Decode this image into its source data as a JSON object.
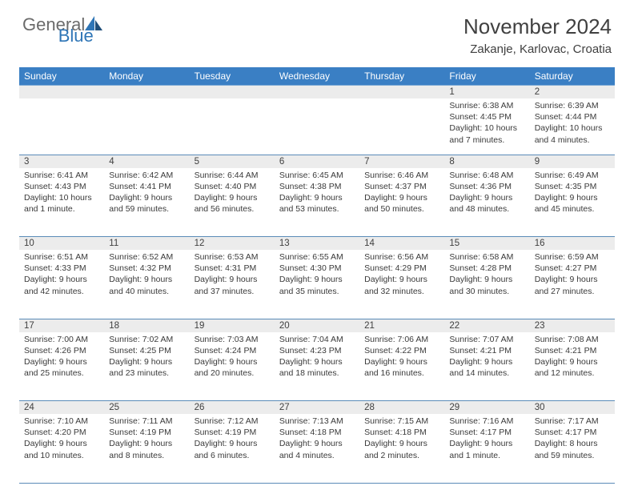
{
  "header": {
    "logo_general": "General",
    "logo_blue": "Blue",
    "title": "November 2024",
    "subtitle": "Zakanje, Karlovac, Croatia"
  },
  "colors": {
    "header_bg": "#3a7fc4",
    "header_text": "#ffffff",
    "daynum_bg": "#ececec",
    "body_text": "#3a3a3a",
    "logo_gray": "#6b6b6b",
    "logo_blue": "#2e75b6",
    "row_divider": "#5a8bb8"
  },
  "weekdays": [
    "Sunday",
    "Monday",
    "Tuesday",
    "Wednesday",
    "Thursday",
    "Friday",
    "Saturday"
  ],
  "weeks": [
    {
      "nums": [
        "",
        "",
        "",
        "",
        "",
        "1",
        "2"
      ],
      "cells": [
        {},
        {},
        {},
        {},
        {},
        {
          "sunrise": "Sunrise: 6:38 AM",
          "sunset": "Sunset: 4:45 PM",
          "daylight": "Daylight: 10 hours and 7 minutes."
        },
        {
          "sunrise": "Sunrise: 6:39 AM",
          "sunset": "Sunset: 4:44 PM",
          "daylight": "Daylight: 10 hours and 4 minutes."
        }
      ]
    },
    {
      "nums": [
        "3",
        "4",
        "5",
        "6",
        "7",
        "8",
        "9"
      ],
      "cells": [
        {
          "sunrise": "Sunrise: 6:41 AM",
          "sunset": "Sunset: 4:43 PM",
          "daylight": "Daylight: 10 hours and 1 minute."
        },
        {
          "sunrise": "Sunrise: 6:42 AM",
          "sunset": "Sunset: 4:41 PM",
          "daylight": "Daylight: 9 hours and 59 minutes."
        },
        {
          "sunrise": "Sunrise: 6:44 AM",
          "sunset": "Sunset: 4:40 PM",
          "daylight": "Daylight: 9 hours and 56 minutes."
        },
        {
          "sunrise": "Sunrise: 6:45 AM",
          "sunset": "Sunset: 4:38 PM",
          "daylight": "Daylight: 9 hours and 53 minutes."
        },
        {
          "sunrise": "Sunrise: 6:46 AM",
          "sunset": "Sunset: 4:37 PM",
          "daylight": "Daylight: 9 hours and 50 minutes."
        },
        {
          "sunrise": "Sunrise: 6:48 AM",
          "sunset": "Sunset: 4:36 PM",
          "daylight": "Daylight: 9 hours and 48 minutes."
        },
        {
          "sunrise": "Sunrise: 6:49 AM",
          "sunset": "Sunset: 4:35 PM",
          "daylight": "Daylight: 9 hours and 45 minutes."
        }
      ]
    },
    {
      "nums": [
        "10",
        "11",
        "12",
        "13",
        "14",
        "15",
        "16"
      ],
      "cells": [
        {
          "sunrise": "Sunrise: 6:51 AM",
          "sunset": "Sunset: 4:33 PM",
          "daylight": "Daylight: 9 hours and 42 minutes."
        },
        {
          "sunrise": "Sunrise: 6:52 AM",
          "sunset": "Sunset: 4:32 PM",
          "daylight": "Daylight: 9 hours and 40 minutes."
        },
        {
          "sunrise": "Sunrise: 6:53 AM",
          "sunset": "Sunset: 4:31 PM",
          "daylight": "Daylight: 9 hours and 37 minutes."
        },
        {
          "sunrise": "Sunrise: 6:55 AM",
          "sunset": "Sunset: 4:30 PM",
          "daylight": "Daylight: 9 hours and 35 minutes."
        },
        {
          "sunrise": "Sunrise: 6:56 AM",
          "sunset": "Sunset: 4:29 PM",
          "daylight": "Daylight: 9 hours and 32 minutes."
        },
        {
          "sunrise": "Sunrise: 6:58 AM",
          "sunset": "Sunset: 4:28 PM",
          "daylight": "Daylight: 9 hours and 30 minutes."
        },
        {
          "sunrise": "Sunrise: 6:59 AM",
          "sunset": "Sunset: 4:27 PM",
          "daylight": "Daylight: 9 hours and 27 minutes."
        }
      ]
    },
    {
      "nums": [
        "17",
        "18",
        "19",
        "20",
        "21",
        "22",
        "23"
      ],
      "cells": [
        {
          "sunrise": "Sunrise: 7:00 AM",
          "sunset": "Sunset: 4:26 PM",
          "daylight": "Daylight: 9 hours and 25 minutes."
        },
        {
          "sunrise": "Sunrise: 7:02 AM",
          "sunset": "Sunset: 4:25 PM",
          "daylight": "Daylight: 9 hours and 23 minutes."
        },
        {
          "sunrise": "Sunrise: 7:03 AM",
          "sunset": "Sunset: 4:24 PM",
          "daylight": "Daylight: 9 hours and 20 minutes."
        },
        {
          "sunrise": "Sunrise: 7:04 AM",
          "sunset": "Sunset: 4:23 PM",
          "daylight": "Daylight: 9 hours and 18 minutes."
        },
        {
          "sunrise": "Sunrise: 7:06 AM",
          "sunset": "Sunset: 4:22 PM",
          "daylight": "Daylight: 9 hours and 16 minutes."
        },
        {
          "sunrise": "Sunrise: 7:07 AM",
          "sunset": "Sunset: 4:21 PM",
          "daylight": "Daylight: 9 hours and 14 minutes."
        },
        {
          "sunrise": "Sunrise: 7:08 AM",
          "sunset": "Sunset: 4:21 PM",
          "daylight": "Daylight: 9 hours and 12 minutes."
        }
      ]
    },
    {
      "nums": [
        "24",
        "25",
        "26",
        "27",
        "28",
        "29",
        "30"
      ],
      "cells": [
        {
          "sunrise": "Sunrise: 7:10 AM",
          "sunset": "Sunset: 4:20 PM",
          "daylight": "Daylight: 9 hours and 10 minutes."
        },
        {
          "sunrise": "Sunrise: 7:11 AM",
          "sunset": "Sunset: 4:19 PM",
          "daylight": "Daylight: 9 hours and 8 minutes."
        },
        {
          "sunrise": "Sunrise: 7:12 AM",
          "sunset": "Sunset: 4:19 PM",
          "daylight": "Daylight: 9 hours and 6 minutes."
        },
        {
          "sunrise": "Sunrise: 7:13 AM",
          "sunset": "Sunset: 4:18 PM",
          "daylight": "Daylight: 9 hours and 4 minutes."
        },
        {
          "sunrise": "Sunrise: 7:15 AM",
          "sunset": "Sunset: 4:18 PM",
          "daylight": "Daylight: 9 hours and 2 minutes."
        },
        {
          "sunrise": "Sunrise: 7:16 AM",
          "sunset": "Sunset: 4:17 PM",
          "daylight": "Daylight: 9 hours and 1 minute."
        },
        {
          "sunrise": "Sunrise: 7:17 AM",
          "sunset": "Sunset: 4:17 PM",
          "daylight": "Daylight: 8 hours and 59 minutes."
        }
      ]
    }
  ]
}
